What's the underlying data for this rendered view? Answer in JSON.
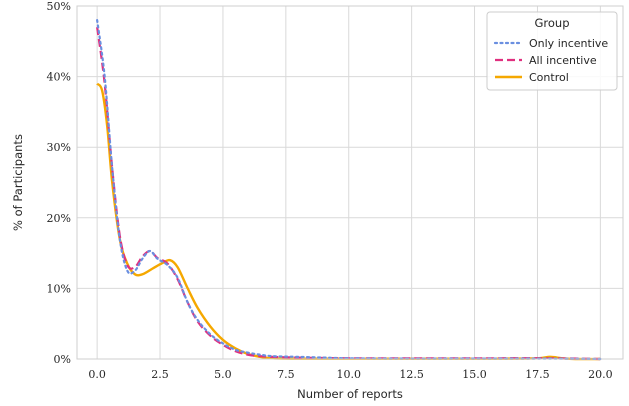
{
  "chart_data": {
    "type": "line",
    "xlabel": "Number of reports",
    "ylabel": "% of Participants",
    "xlim": [
      -0.8,
      20.9
    ],
    "ylim": [
      0,
      50
    ],
    "x_ticks": [
      "0.0",
      "2.5",
      "5.0",
      "7.5",
      "10.0",
      "12.5",
      "15.0",
      "17.5",
      "20.0"
    ],
    "x_tick_values": [
      0,
      2.5,
      5,
      7.5,
      10,
      12.5,
      15,
      17.5,
      20
    ],
    "y_ticks": [
      "0%",
      "10%",
      "20%",
      "30%",
      "40%",
      "50%"
    ],
    "y_tick_values": [
      0,
      10,
      20,
      30,
      40,
      50
    ],
    "grid": true,
    "legend": {
      "title": "Group",
      "position": "top-right"
    },
    "series": [
      {
        "name": "Only incentive",
        "color": "#6a8fe0",
        "style": "dotted",
        "points": [
          [
            0,
            48
          ],
          [
            0.3,
            40
          ],
          [
            0.6,
            27
          ],
          [
            0.9,
            17
          ],
          [
            1.2,
            12.5
          ],
          [
            1.5,
            12.5
          ],
          [
            1.8,
            14.2
          ],
          [
            2.1,
            15.3
          ],
          [
            2.4,
            14.2
          ],
          [
            2.8,
            13.3
          ],
          [
            3.2,
            11.5
          ],
          [
            3.6,
            8
          ],
          [
            4,
            5.5
          ],
          [
            4.5,
            3.5
          ],
          [
            5,
            2.2
          ],
          [
            5.5,
            1.3
          ],
          [
            6,
            0.9
          ],
          [
            6.5,
            0.6
          ],
          [
            7,
            0.4
          ],
          [
            8,
            0.3
          ],
          [
            9,
            0.2
          ],
          [
            10,
            0.1
          ],
          [
            12,
            0.05
          ],
          [
            14,
            0.05
          ],
          [
            16,
            0.05
          ],
          [
            18,
            0.05
          ],
          [
            20,
            0
          ]
        ]
      },
      {
        "name": "All incentive",
        "color": "#e0307f",
        "style": "dashed",
        "points": [
          [
            0,
            47
          ],
          [
            0.3,
            39
          ],
          [
            0.6,
            27
          ],
          [
            0.9,
            17.5
          ],
          [
            1.2,
            13.3
          ],
          [
            1.5,
            13
          ],
          [
            1.8,
            14.5
          ],
          [
            2.1,
            15.3
          ],
          [
            2.4,
            14.3
          ],
          [
            2.8,
            13.5
          ],
          [
            3.2,
            11.3
          ],
          [
            3.6,
            8
          ],
          [
            4,
            5.3
          ],
          [
            4.5,
            3.3
          ],
          [
            5,
            2
          ],
          [
            5.5,
            1.1
          ],
          [
            6,
            0.6
          ],
          [
            6.5,
            0.4
          ],
          [
            7,
            0.3
          ],
          [
            8,
            0.2
          ],
          [
            9,
            0.15
          ],
          [
            10,
            0.1
          ],
          [
            12,
            0.1
          ],
          [
            14,
            0.1
          ],
          [
            16,
            0.1
          ],
          [
            18,
            0.1
          ],
          [
            20,
            0
          ]
        ]
      },
      {
        "name": "Control",
        "color": "#f5a800",
        "style": "solid",
        "points": [
          [
            0,
            39
          ],
          [
            0.2,
            38
          ],
          [
            0.4,
            33
          ],
          [
            0.6,
            25
          ],
          [
            0.9,
            17
          ],
          [
            1.2,
            13.5
          ],
          [
            1.5,
            12
          ],
          [
            1.8,
            12
          ],
          [
            2.2,
            12.8
          ],
          [
            2.6,
            13.6
          ],
          [
            2.9,
            14
          ],
          [
            3.2,
            13
          ],
          [
            3.6,
            10
          ],
          [
            4,
            7.2
          ],
          [
            4.5,
            4.6
          ],
          [
            5,
            2.7
          ],
          [
            5.5,
            1.5
          ],
          [
            6,
            0.7
          ],
          [
            6.5,
            0.3
          ],
          [
            7,
            0.1
          ],
          [
            8,
            0.05
          ],
          [
            10,
            0.05
          ],
          [
            12,
            0.05
          ],
          [
            14,
            0.05
          ],
          [
            16,
            0.05
          ],
          [
            17.5,
            0.1
          ],
          [
            18,
            0.3
          ],
          [
            18.5,
            0.1
          ],
          [
            19,
            0
          ],
          [
            20,
            0
          ]
        ]
      }
    ]
  }
}
